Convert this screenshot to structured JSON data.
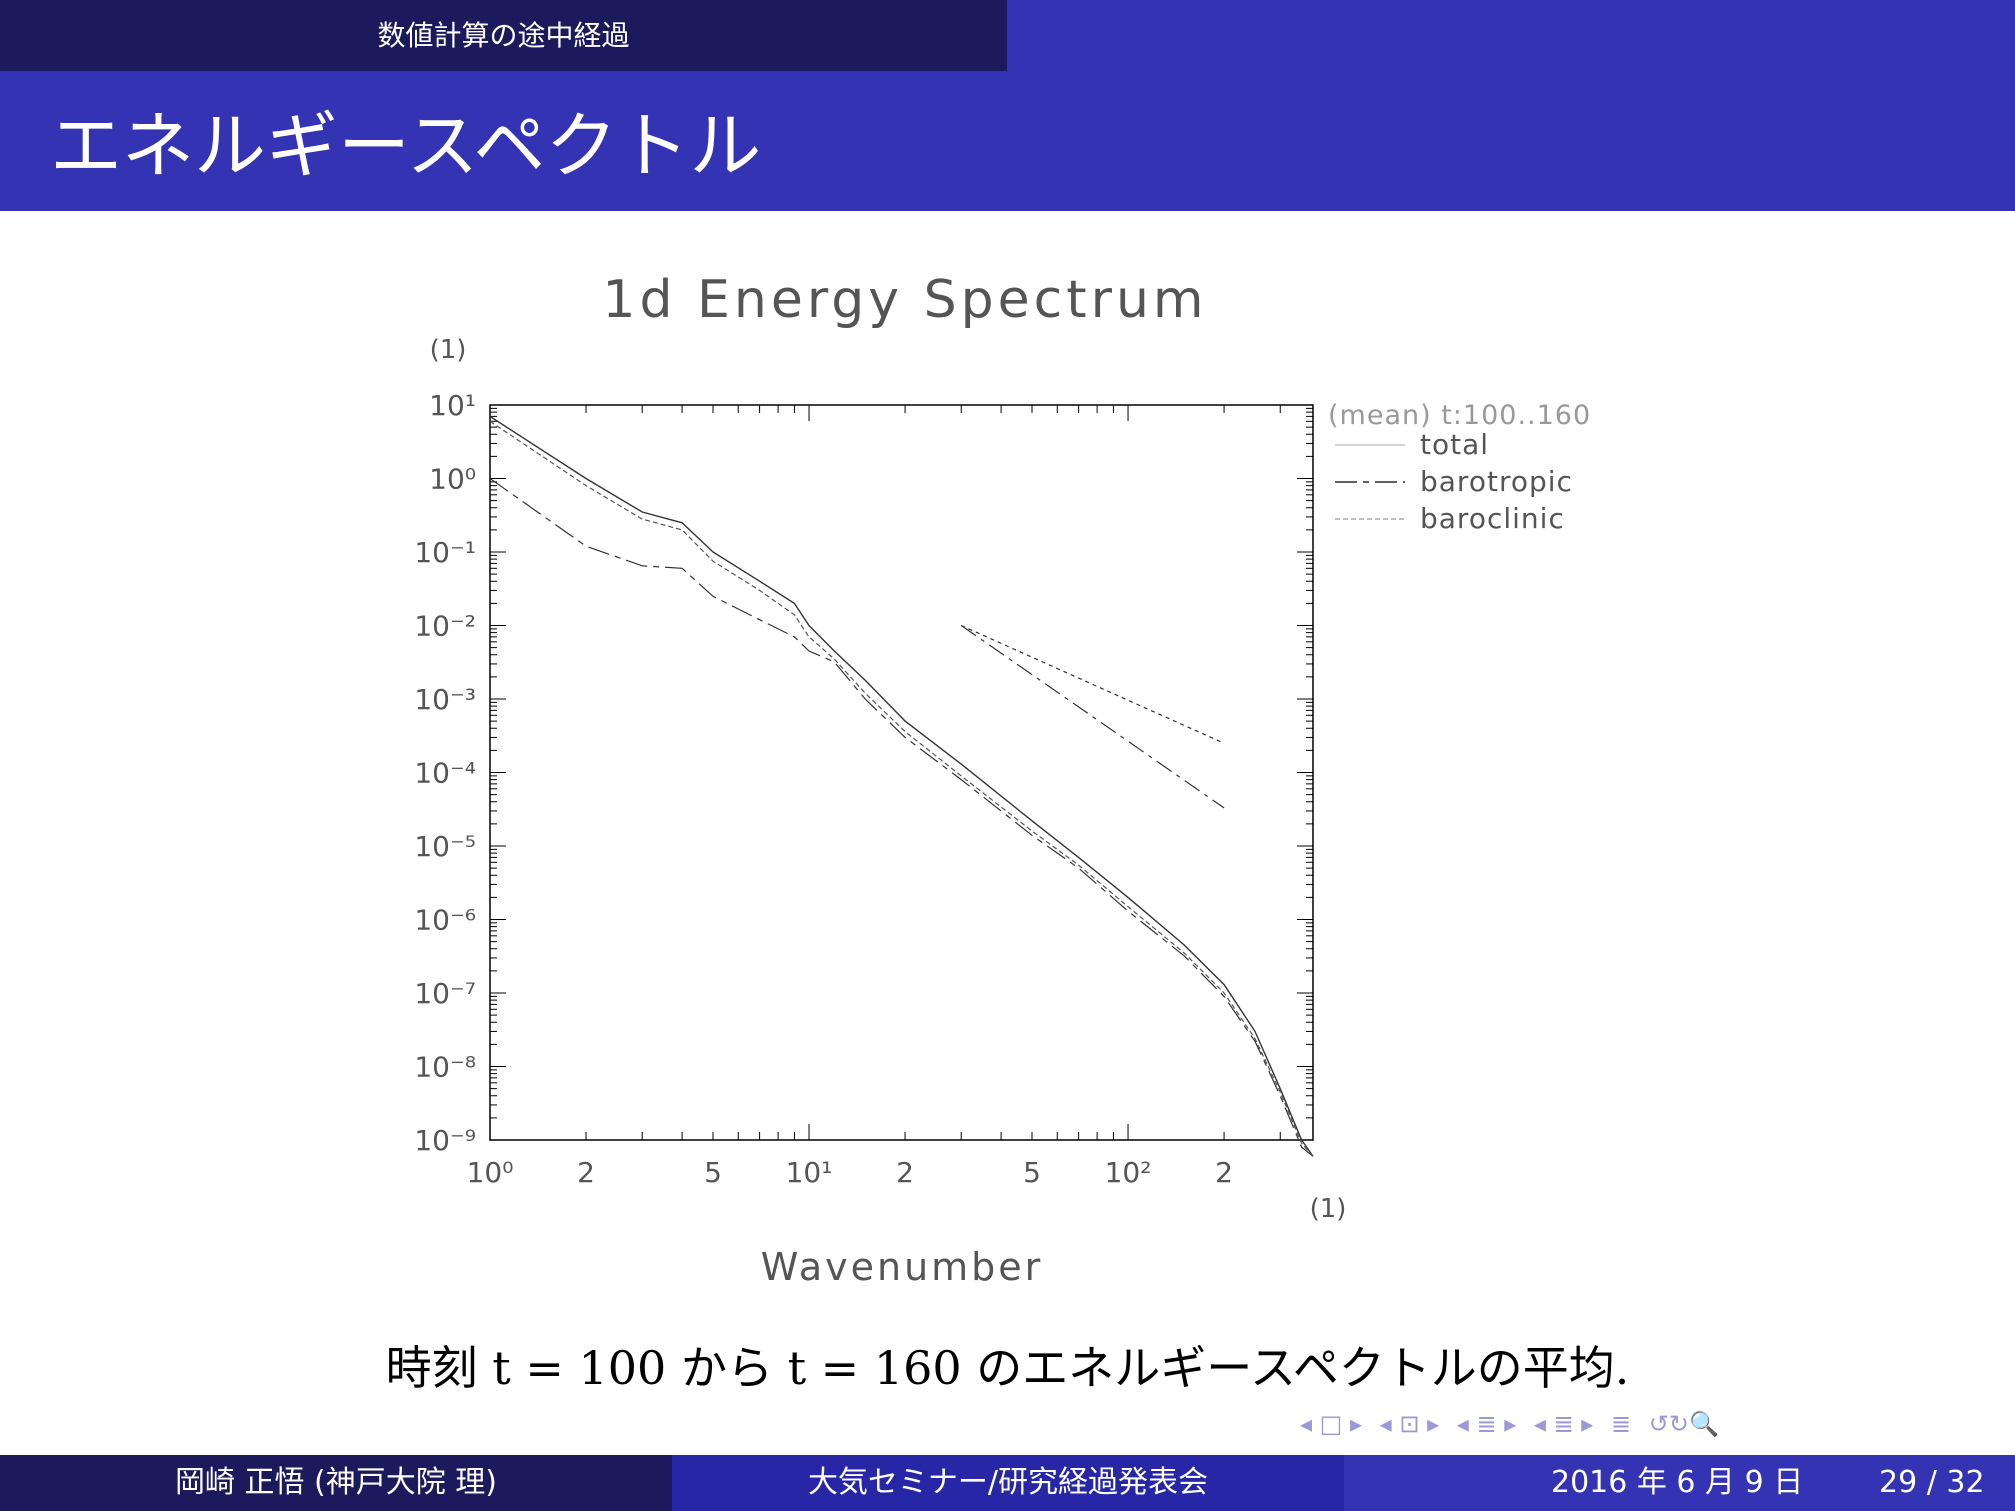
{
  "header": {
    "section_title": "数値計算の途中経過"
  },
  "frame": {
    "title": "エネルギースペクトル"
  },
  "chart_data": {
    "type": "line",
    "title": "1d Energy Spectrum",
    "xlabel": "Wavenumber",
    "x_unit": "(1)",
    "y_unit": "(1)",
    "xscale": "log",
    "yscale": "log",
    "xlim": [
      1,
      380
    ],
    "ylim": [
      1e-09,
      10
    ],
    "x_tick_labels": [
      "10⁰",
      "2",
      "5",
      "10¹",
      "2",
      "5",
      "10²",
      "2"
    ],
    "y_tick_labels": [
      "10¹",
      "10⁰",
      "10⁻¹",
      "10⁻²",
      "10⁻³",
      "10⁻⁴",
      "10⁻⁵",
      "10⁻⁶",
      "10⁻⁷",
      "10⁻⁸",
      "10⁻⁹"
    ],
    "legend_title": "(mean) t:100..160",
    "legend_placement": "right-top",
    "series": [
      {
        "name": "total",
        "x": [
          1,
          2,
          3,
          4,
          5,
          7,
          9,
          10,
          12,
          15,
          20,
          30,
          50,
          70,
          100,
          150,
          200,
          250,
          300,
          350,
          380
        ],
        "y": [
          7,
          1,
          0.35,
          0.25,
          0.1,
          0.04,
          0.02,
          0.01,
          0.0045,
          0.0018,
          0.0005,
          0.00013,
          2.2e-05,
          7e-06,
          2e-06,
          4.5e-07,
          1.3e-07,
          3e-08,
          5e-09,
          1e-09,
          2e-10
        ]
      },
      {
        "name": "barotropic",
        "x": [
          1,
          2,
          3,
          4,
          5,
          7,
          9,
          10,
          12,
          15,
          20,
          30,
          50,
          70,
          100,
          150,
          200,
          250,
          300,
          350,
          380
        ],
        "y": [
          1,
          0.12,
          0.065,
          0.06,
          0.025,
          0.012,
          0.007,
          0.0045,
          0.0032,
          0.001,
          0.0003,
          8e-05,
          1.4e-05,
          5e-06,
          1.3e-06,
          3.2e-07,
          9e-08,
          2.2e-08,
          4e-09,
          8e-10,
          2e-10
        ]
      },
      {
        "name": "baroclinic",
        "x": [
          1,
          2,
          3,
          4,
          5,
          7,
          9,
          10,
          12,
          15,
          20,
          30,
          50,
          70,
          100,
          150,
          200,
          250,
          300,
          350,
          380
        ],
        "y": [
          6,
          0.8,
          0.28,
          0.2,
          0.075,
          0.03,
          0.014,
          0.007,
          0.0035,
          0.0012,
          0.00036,
          9e-05,
          1.6e-05,
          5.5e-06,
          1.5e-06,
          3.5e-07,
          1e-07,
          2.4e-08,
          4.5e-09,
          9e-10,
          2e-10
        ]
      }
    ],
    "reference_lines": [
      {
        "style": "dotted",
        "x": [
          30,
          200
        ],
        "y": [
          0.01,
          0.00025
        ]
      },
      {
        "style": "dash-dot",
        "x": [
          30,
          200
        ],
        "y": [
          0.01,
          3.3e-05
        ]
      }
    ],
    "colors": {
      "lines": "#333333",
      "axis": "#000000",
      "labels": "#555555"
    }
  },
  "caption": {
    "text": "時刻 t = 100 から t = 160 のエネルギースペクトルの平均."
  },
  "nav_symbols": [
    "◂ □ ▸",
    "◂ ⊡ ▸",
    "◂ ≣ ▸",
    "◂ ≣ ▸",
    "≣",
    "↺↻🔍"
  ],
  "footer": {
    "author": "岡崎 正悟 (神戸大院 理)",
    "event": "大気セミナー/研究経過発表会",
    "date": "2016 年 6 月 9 日",
    "page": "29 / 32"
  }
}
